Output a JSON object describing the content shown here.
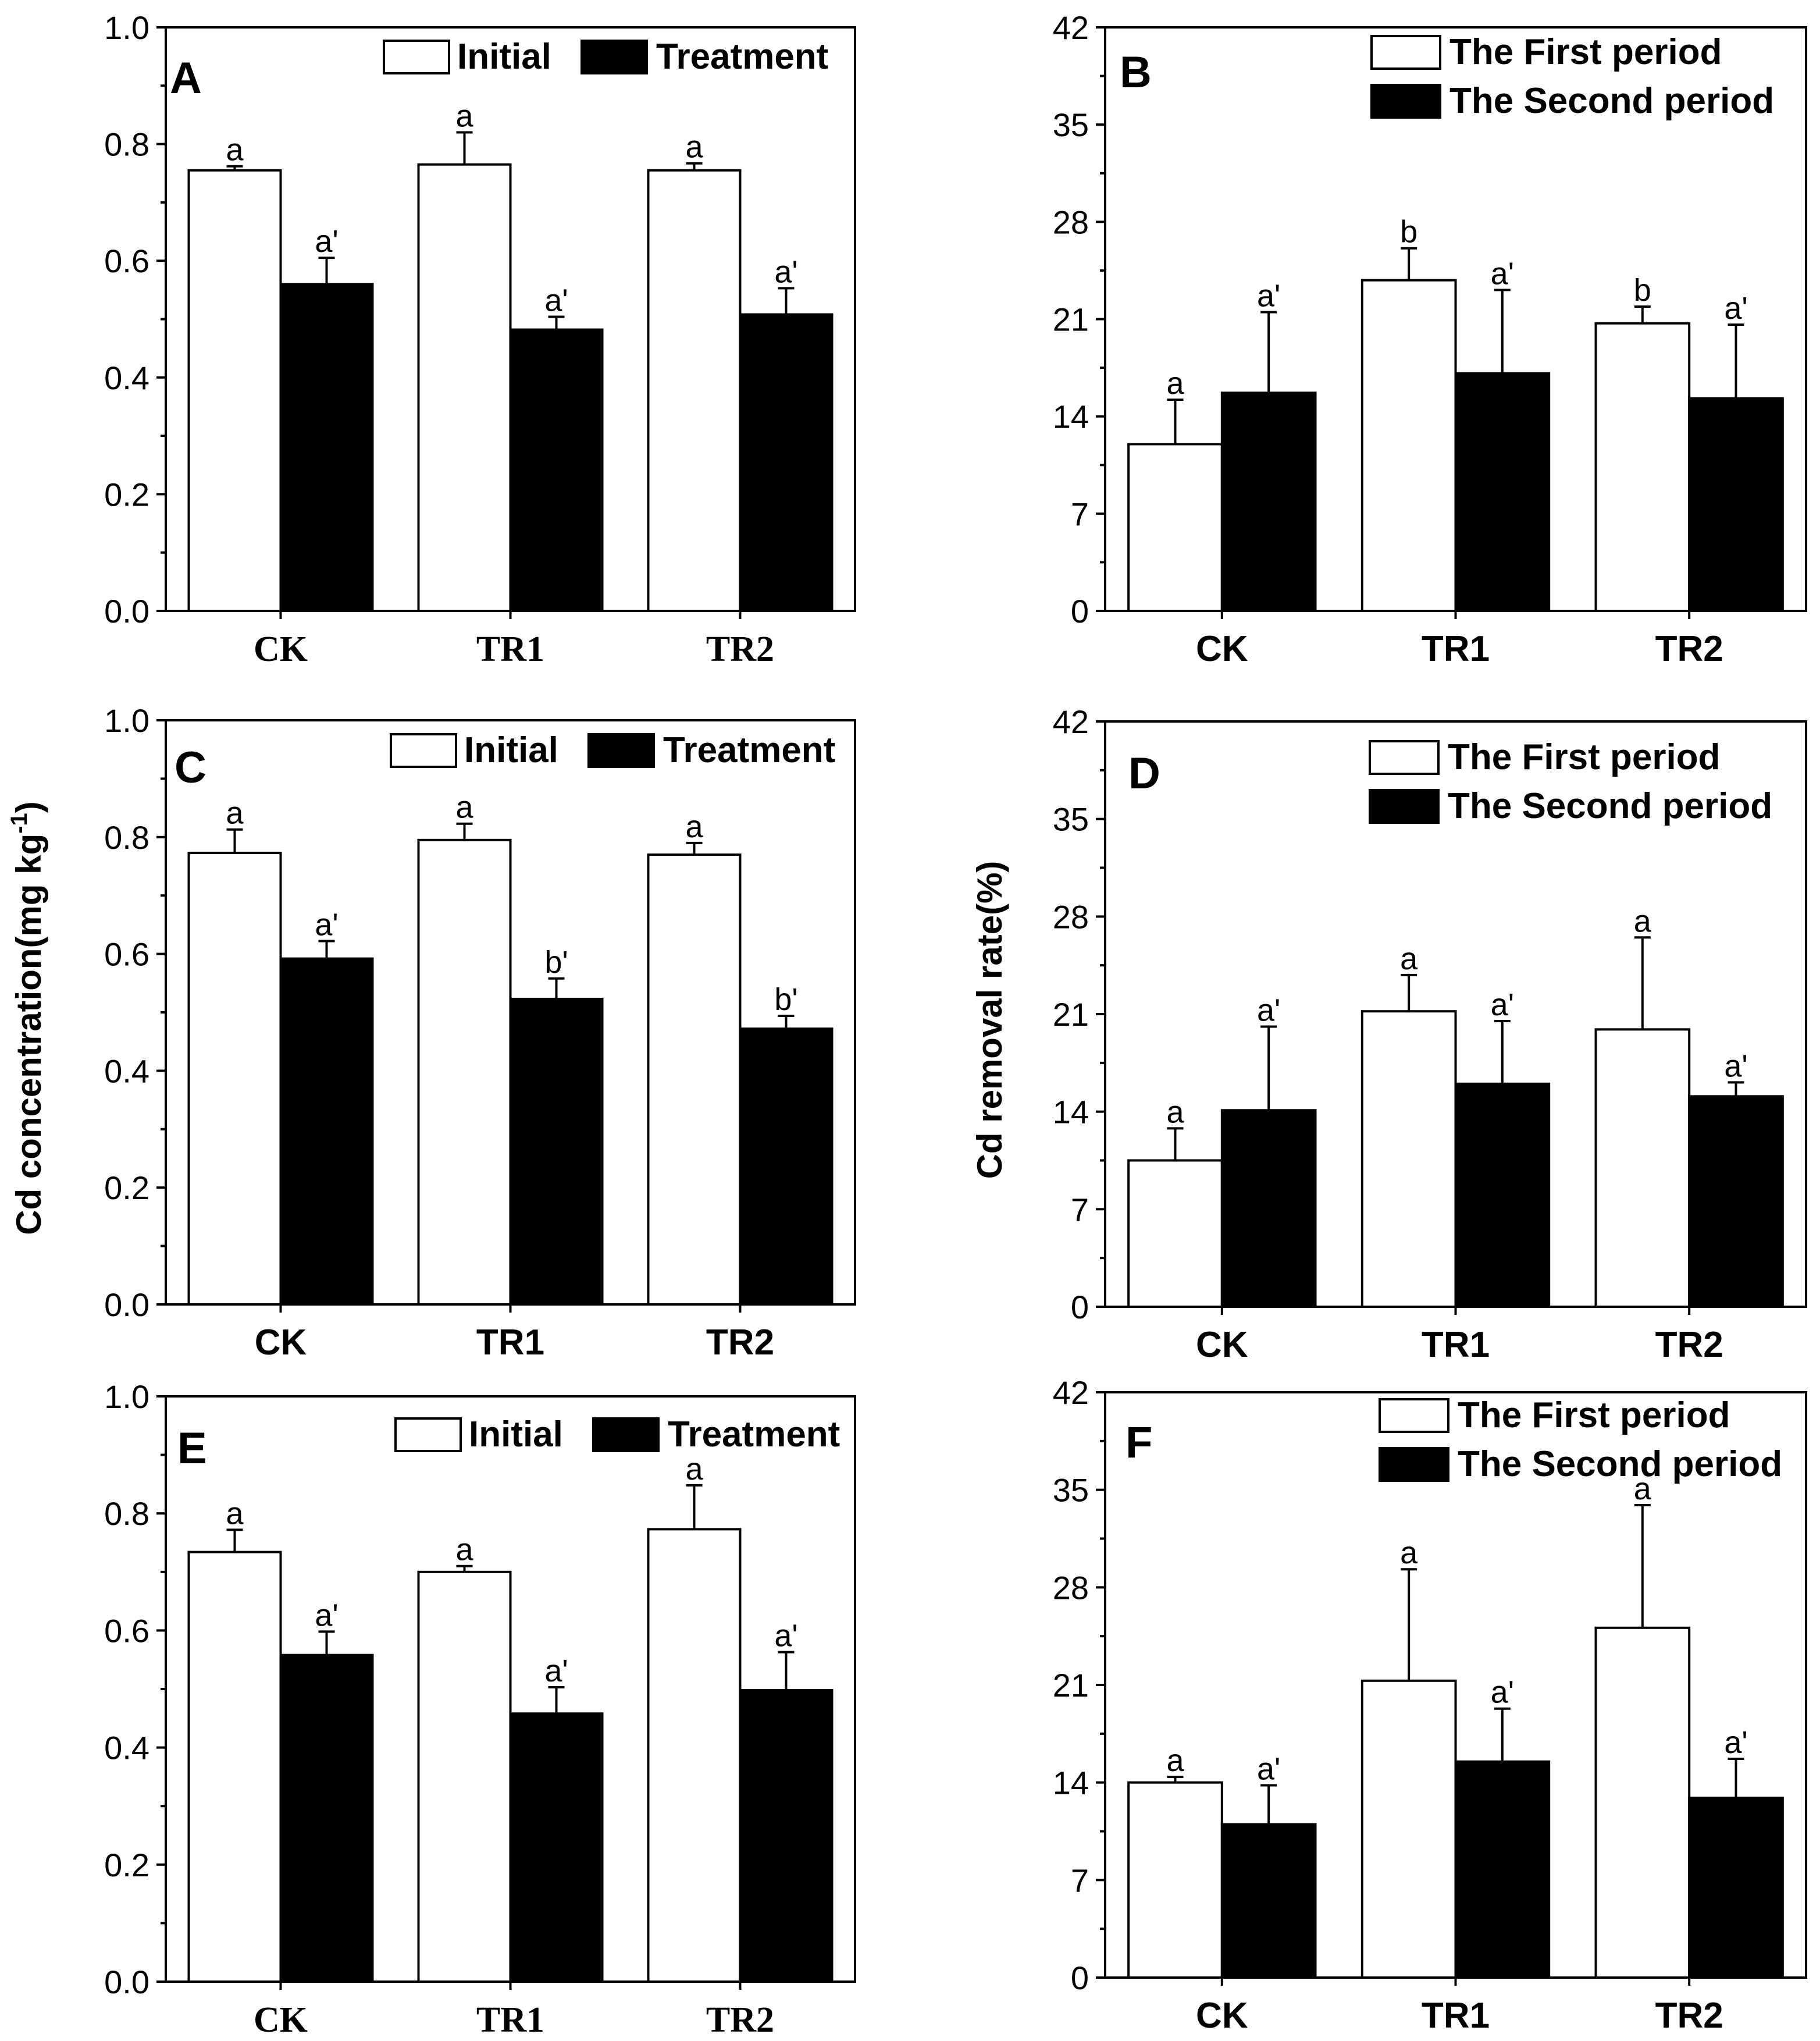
{
  "chart_data": [
    {
      "panel": "A",
      "type": "bar",
      "categories": [
        "CK",
        "TR1",
        "TR2"
      ],
      "series": [
        {
          "name": "Initial",
          "values": [
            0.755,
            0.765,
            0.755
          ],
          "errors": [
            0.007,
            0.055,
            0.012
          ],
          "labels": [
            "a",
            "a",
            "a"
          ]
        },
        {
          "name": "Treatment",
          "values": [
            0.56,
            0.482,
            0.508
          ],
          "errors": [
            0.045,
            0.022,
            0.045
          ],
          "labels": [
            "a'",
            "a'",
            "a'"
          ]
        }
      ],
      "ylim": [
        0,
        1.0
      ],
      "yticks": [
        "0.0",
        "0.2",
        "0.4",
        "0.6",
        "0.8",
        "1.0"
      ]
    },
    {
      "panel": "B",
      "type": "bar",
      "categories": [
        "CK",
        "TR1",
        "TR2"
      ],
      "series": [
        {
          "name": "The First period",
          "values": [
            12.0,
            23.8,
            20.7
          ],
          "errors": [
            3.2,
            2.3,
            1.2
          ],
          "labels": [
            "a",
            "b",
            "b"
          ]
        },
        {
          "name": "The Second period",
          "values": [
            15.7,
            17.1,
            15.3
          ],
          "errors": [
            5.8,
            6.0,
            5.3
          ],
          "labels": [
            "a'",
            "a'",
            "a'"
          ]
        }
      ],
      "ylim": [
        0,
        42
      ],
      "yticks": [
        "0",
        "7",
        "14",
        "21",
        "28",
        "35",
        "42"
      ]
    },
    {
      "panel": "C",
      "type": "bar",
      "categories": [
        "CK",
        "TR1",
        "TR2"
      ],
      "series": [
        {
          "name": "Initial",
          "values": [
            0.773,
            0.795,
            0.77
          ],
          "errors": [
            0.04,
            0.028,
            0.02
          ],
          "labels": [
            "a",
            "a",
            "a"
          ]
        },
        {
          "name": "Treatment",
          "values": [
            0.592,
            0.523,
            0.472
          ],
          "errors": [
            0.03,
            0.035,
            0.022
          ],
          "labels": [
            "a'",
            "b'",
            "b'"
          ]
        }
      ],
      "ylim": [
        0,
        1.0
      ],
      "yticks": [
        "0.0",
        "0.2",
        "0.4",
        "0.6",
        "0.8",
        "1.0"
      ],
      "ylabel": "Cd concentration(mg kg-1)"
    },
    {
      "panel": "D",
      "type": "bar",
      "categories": [
        "CK",
        "TR1",
        "TR2"
      ],
      "series": [
        {
          "name": "The First period",
          "values": [
            10.5,
            21.2,
            19.9
          ],
          "errors": [
            2.3,
            2.6,
            6.6
          ],
          "labels": [
            "a",
            "a",
            "a"
          ]
        },
        {
          "name": "The Second period",
          "values": [
            14.1,
            16.0,
            15.1
          ],
          "errors": [
            6.0,
            4.5,
            1.0
          ],
          "labels": [
            "a'",
            "a'",
            "a'"
          ]
        }
      ],
      "ylim": [
        0,
        42
      ],
      "yticks": [
        "0",
        "7",
        "14",
        "21",
        "28",
        "35",
        "42"
      ],
      "ylabel": "Cd removal rate(%)"
    },
    {
      "panel": "E",
      "type": "bar",
      "categories": [
        "CK",
        "TR1",
        "TR2"
      ],
      "series": [
        {
          "name": "Initial",
          "values": [
            0.734,
            0.7,
            0.773
          ],
          "errors": [
            0.038,
            0.01,
            0.075
          ],
          "labels": [
            "a",
            "a",
            "a"
          ]
        },
        {
          "name": "Treatment",
          "values": [
            0.558,
            0.458,
            0.498
          ],
          "errors": [
            0.04,
            0.045,
            0.065
          ],
          "labels": [
            "a'",
            "a'",
            "a'"
          ]
        }
      ],
      "ylim": [
        0,
        1.0
      ],
      "yticks": [
        "0.0",
        "0.2",
        "0.4",
        "0.6",
        "0.8",
        "1.0"
      ]
    },
    {
      "panel": "F",
      "type": "bar",
      "categories": [
        "CK",
        "TR1",
        "TR2"
      ],
      "series": [
        {
          "name": "The First period",
          "values": [
            14.0,
            21.3,
            25.1
          ],
          "errors": [
            0.4,
            8.0,
            8.8
          ],
          "labels": [
            "a",
            "a",
            "a"
          ]
        },
        {
          "name": "The Second period",
          "values": [
            11.0,
            15.5,
            12.9
          ],
          "errors": [
            2.8,
            3.8,
            2.8
          ],
          "labels": [
            "a'",
            "a'",
            "a'"
          ]
        }
      ],
      "ylim": [
        0,
        42
      ],
      "yticks": [
        "0",
        "7",
        "14",
        "21",
        "28",
        "35",
        "42"
      ]
    }
  ]
}
